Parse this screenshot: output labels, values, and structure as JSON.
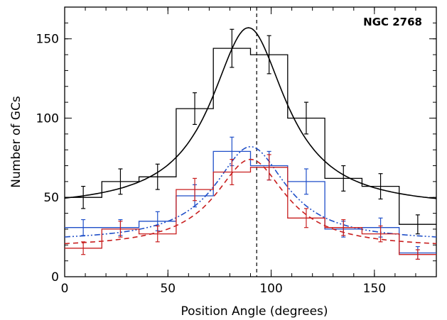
{
  "chart_data": {
    "type": "line",
    "plot_label": "NGC 2768",
    "xlabel": "Position Angle (degrees)",
    "ylabel": "Number of GCs",
    "xlim": [
      0,
      180
    ],
    "ylim": [
      0,
      170
    ],
    "xticks": [
      0,
      50,
      100,
      150
    ],
    "yticks": [
      0,
      50,
      100,
      150
    ],
    "minor_xtick_step": 10,
    "minor_ytick_step": 10,
    "grid": false,
    "reference_line_x": 93,
    "bin_edges": [
      0,
      18,
      36,
      54,
      72,
      90,
      108,
      126,
      144,
      162,
      180
    ],
    "bin_centers": [
      9,
      27,
      45,
      63,
      81,
      99,
      117,
      135,
      153,
      171
    ],
    "series": [
      {
        "color": "#000000",
        "histogram": [
          50,
          60,
          63,
          106,
          144,
          140,
          100,
          62,
          57,
          33
        ],
        "errors": [
          7,
          8,
          8,
          10,
          12,
          12,
          10,
          8,
          8,
          6
        ],
        "fit": {
          "style": "solid",
          "peak_x": 89,
          "peak_y": 157,
          "base_y": 43,
          "width": 22
        }
      },
      {
        "color": "#1f4fc8",
        "histogram": [
          31,
          31,
          35,
          51,
          79,
          70,
          60,
          30,
          31,
          15
        ],
        "errors": [
          5,
          5,
          6,
          7,
          9,
          9,
          8,
          5,
          6,
          4
        ],
        "fit": {
          "style": "dash-dot-dot",
          "peak_x": 90,
          "peak_y": 82,
          "base_y": 22,
          "width": 21
        }
      },
      {
        "color": "#c81e1e",
        "histogram": [
          18,
          30,
          27,
          55,
          66,
          69,
          37,
          31,
          27,
          14
        ],
        "errors": [
          4,
          5,
          5,
          7,
          8,
          8,
          6,
          5,
          5,
          3
        ],
        "fit": {
          "style": "dashed",
          "peak_x": 90,
          "peak_y": 74,
          "base_y": 18,
          "width": 21
        }
      }
    ]
  }
}
